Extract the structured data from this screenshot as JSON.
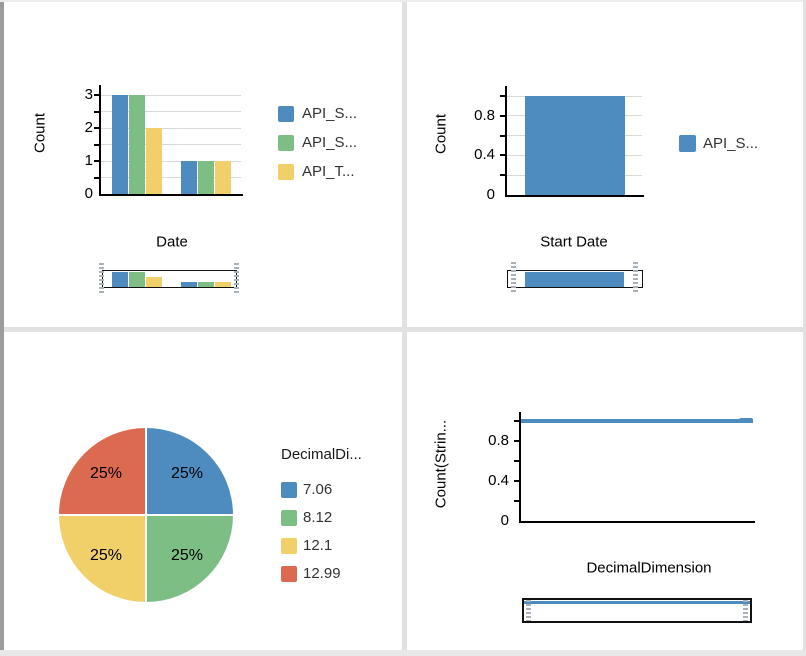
{
  "palette": {
    "blue": "#4e8cbf",
    "green": "#7dbe85",
    "yellow": "#f2d069",
    "red": "#dc6a51",
    "axis": "#000000",
    "gridline": "#d9d9d9",
    "divider": "#e1e1e1",
    "brush_handle": "#a9b2ba"
  },
  "chart_data": [
    {
      "id": "top-left",
      "type": "bar",
      "xlabel": "Date",
      "ylabel": "Count",
      "ylim": [
        0,
        3
      ],
      "yticks": [
        "3",
        "2",
        "1",
        "0"
      ],
      "grid": true,
      "legend_position": "right",
      "categories": [
        "",
        ""
      ],
      "series": [
        {
          "name": "API_S...",
          "color": "#4e8cbf",
          "values": [
            3,
            1
          ]
        },
        {
          "name": "API_S...",
          "color": "#7dbe85",
          "values": [
            3,
            1
          ]
        },
        {
          "name": "API_T...",
          "color": "#f2d069",
          "values": [
            2,
            1
          ]
        }
      ],
      "has_range_brush": true
    },
    {
      "id": "top-right",
      "type": "bar",
      "xlabel": "Start Date",
      "ylabel": "Count",
      "ylim": [
        0,
        1.1
      ],
      "yticks": [
        "0.8",
        "0.4",
        "0"
      ],
      "grid": true,
      "legend_position": "right",
      "categories": [
        ""
      ],
      "series": [
        {
          "name": "API_S...",
          "color": "#4e8cbf",
          "values": [
            1
          ]
        }
      ],
      "has_range_brush": true
    },
    {
      "id": "bottom-left",
      "type": "pie",
      "legend_title": "DecimalDi...",
      "legend_position": "right",
      "slices": [
        {
          "label": "7.06",
          "percent": 25,
          "percent_label": "25%",
          "color": "#4e8cbf"
        },
        {
          "label": "8.12",
          "percent": 25,
          "percent_label": "25%",
          "color": "#7dbe85"
        },
        {
          "label": "12.1",
          "percent": 25,
          "percent_label": "25%",
          "color": "#f2d069"
        },
        {
          "label": "12.99",
          "percent": 25,
          "percent_label": "25%",
          "color": "#dc6a51"
        }
      ]
    },
    {
      "id": "bottom-right",
      "type": "line",
      "xlabel": "DecimalDimension",
      "ylabel": "Count(Strin...",
      "ylim": [
        0,
        1.1
      ],
      "yticks": [
        "0.8",
        "0.4",
        "0"
      ],
      "grid": false,
      "line_value": 1,
      "color": "#4e8cbf",
      "has_range_brush": true
    }
  ]
}
